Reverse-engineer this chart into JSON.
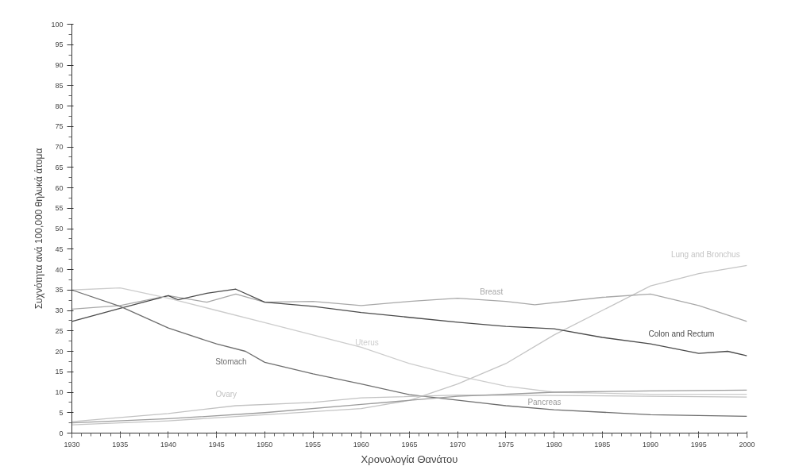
{
  "chart_data": {
    "type": "line",
    "xlabel": "Χρονολογία Θανάτου",
    "ylabel": "Συχνότητα ανά 100,000 θηλυκά άτομα",
    "xlim": [
      1930,
      2000
    ],
    "xticks": [
      1930,
      1935,
      1940,
      1945,
      1950,
      1955,
      1960,
      1965,
      1970,
      1975,
      1980,
      1985,
      1990,
      1995,
      2000
    ],
    "ylim": [
      0,
      100
    ],
    "yticks": [
      0,
      5,
      10,
      15,
      20,
      25,
      30,
      35,
      40,
      45,
      50,
      55,
      60,
      65,
      70,
      75,
      80,
      85,
      90,
      95,
      100
    ],
    "grid": false,
    "marker": "none",
    "line_style": "solid",
    "series": [
      {
        "name": "Lung and Bronchus",
        "color": "#c4c4c4",
        "x": [
          1930,
          1940,
          1950,
          1960,
          1965,
          1970,
          1975,
          1980,
          1985,
          1990,
          1995,
          2000
        ],
        "values": [
          2,
          3,
          4.5,
          6,
          8,
          12,
          17,
          24,
          30,
          36,
          39,
          41
        ]
      },
      {
        "name": "Breast",
        "color": "#a8a8a8",
        "x": [
          1930,
          1935,
          1940,
          1944,
          1947,
          1950,
          1955,
          1960,
          1965,
          1970,
          1975,
          1978,
          1985,
          1990,
          1995,
          2000
        ],
        "values": [
          30.3,
          31.2,
          33.6,
          32,
          34,
          32,
          32.2,
          31.2,
          32.2,
          33,
          32.2,
          31.4,
          33.2,
          34,
          31.2,
          27.3
        ]
      },
      {
        "name": "Colon and Rectum",
        "color": "#4a4a4a",
        "x": [
          1930,
          1935,
          1940,
          1941,
          1944,
          1947,
          1950,
          1955,
          1960,
          1965,
          1970,
          1975,
          1980,
          1985,
          1990,
          1995,
          1998,
          2000
        ],
        "values": [
          27.3,
          30.5,
          33.6,
          32.6,
          34.2,
          35.2,
          32,
          31,
          29.5,
          28.3,
          27.1,
          26.1,
          25.5,
          23.4,
          21.8,
          19.5,
          20,
          18.9
        ]
      },
      {
        "name": "Uterus",
        "color": "#cccccc",
        "x": [
          1930,
          1935,
          1940,
          1945,
          1950,
          1955,
          1960,
          1965,
          1970,
          1975,
          1980,
          1990,
          2000
        ],
        "values": [
          35,
          35.5,
          33,
          30,
          27,
          24,
          21,
          17,
          14,
          11.5,
          10,
          9.5,
          9.5
        ]
      },
      {
        "name": "Stomach",
        "color": "#6e6e6e",
        "x": [
          1930,
          1935,
          1940,
          1945,
          1948,
          1950,
          1955,
          1960,
          1965,
          1975,
          1980,
          1990,
          2000
        ],
        "values": [
          35,
          31,
          25.7,
          21.8,
          20,
          17.3,
          14.5,
          12,
          9.4,
          6.7,
          5.7,
          4.5,
          4.1
        ]
      },
      {
        "name": "Ovary",
        "color": "#c2c2c2",
        "x": [
          1930,
          1935,
          1940,
          1947,
          1955,
          1960,
          1970,
          1980,
          1990,
          2000
        ],
        "values": [
          2.8,
          3.8,
          4.8,
          6.7,
          7.5,
          8.6,
          9.3,
          9.2,
          9,
          8.8
        ]
      },
      {
        "name": "Pancreas",
        "color": "#9c9c9c",
        "x": [
          1930,
          1940,
          1950,
          1960,
          1970,
          1980,
          1990,
          2000
        ],
        "values": [
          2.5,
          3.5,
          5,
          7,
          9,
          10,
          10.3,
          10.5
        ]
      }
    ]
  }
}
